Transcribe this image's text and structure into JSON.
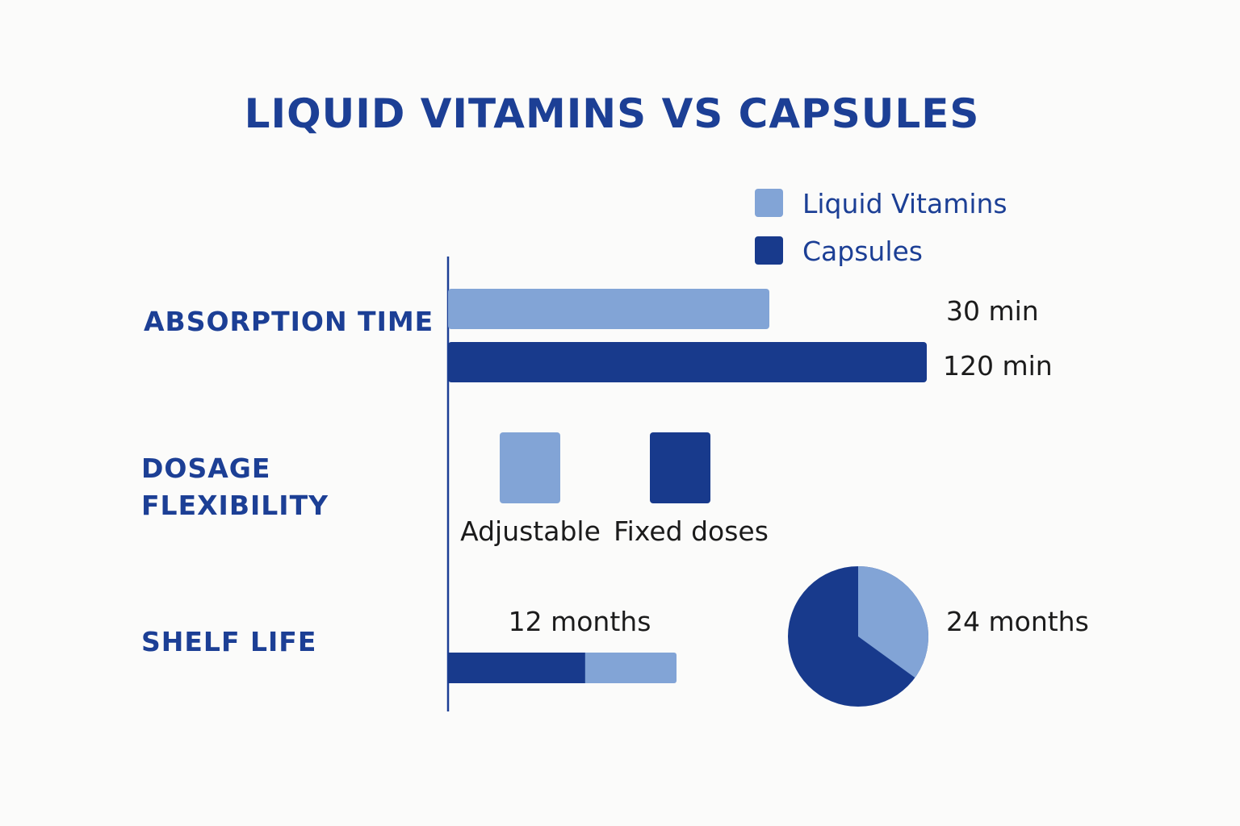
{
  "colors": {
    "liquid": "#82a4d6",
    "capsule": "#183a8c",
    "title": "#1c3f95",
    "text": "#1b1b1b",
    "axis": "#1c3f95"
  },
  "chart_data": {
    "type": "bar",
    "title": "LIQUID VITAMINS VS CAPSULES",
    "legend": {
      "position": "top-right",
      "items": [
        {
          "name": "Liquid Vitamins",
          "color": "liquid"
        },
        {
          "name": "Capsules",
          "color": "capsule"
        }
      ]
    },
    "absorption_time": {
      "category": "ABSORPTION TIME",
      "unit": "min",
      "series": [
        {
          "name": "Liquid Vitamins",
          "value": 30,
          "label": "30 min"
        },
        {
          "name": "Capsules",
          "value": 120,
          "label": "120 min"
        }
      ]
    },
    "dosage_flexibility": {
      "category_lines": [
        "DOSAGE",
        "FLEXIBILITY"
      ],
      "items": [
        {
          "name": "Liquid Vitamins",
          "label": "Adjustable"
        },
        {
          "name": "Capsules",
          "label": "Fixed doses"
        }
      ]
    },
    "shelf_life": {
      "category": "SHELF LIFE",
      "unit": "months",
      "liquid": {
        "value": 12,
        "label": "12 months"
      },
      "capsule": {
        "value": 24,
        "label": "24 months"
      },
      "bar_capsule_fraction": 0.6,
      "pie_liquid_fraction": 0.35
    }
  }
}
